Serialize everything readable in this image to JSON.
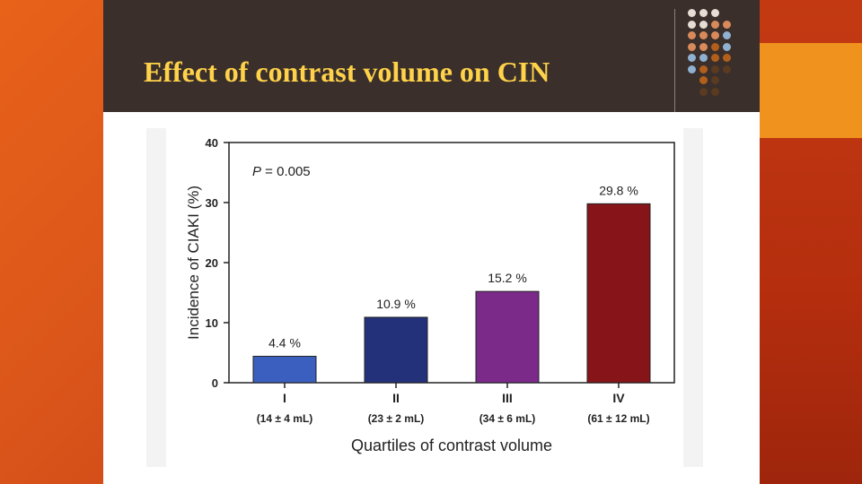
{
  "slide": {
    "title": "Effect of contrast volume on CIN"
  },
  "chart_data": {
    "type": "bar",
    "categories": [
      "I",
      "II",
      "III",
      "IV"
    ],
    "category_sublabels": [
      "(14 ± 4 mL)",
      "(23 ± 2 mL)",
      "(34 ± 6 mL)",
      "(61 ± 12 mL)"
    ],
    "values": [
      4.4,
      10.9,
      15.2,
      29.8
    ],
    "data_labels": [
      "4.4 %",
      "10.9 %",
      "15.2 %",
      "29.8 %"
    ],
    "bar_colors": [
      "#3a5fbf",
      "#23307a",
      "#7b2a8a",
      "#861419"
    ],
    "annotation": "P = 0.005",
    "xlabel": "Quartiles of contrast volume",
    "ylabel": "Incidence of CIAKI (%)",
    "ylim": [
      0,
      40
    ],
    "yticks": [
      0,
      10,
      20,
      30,
      40
    ],
    "grid": false,
    "legend": "none"
  },
  "theme": {
    "dot_colors": [
      "#e6ddd4",
      "#d98a5a",
      "#8fb0d0",
      "#b35f1c",
      "#5a3a20"
    ]
  }
}
